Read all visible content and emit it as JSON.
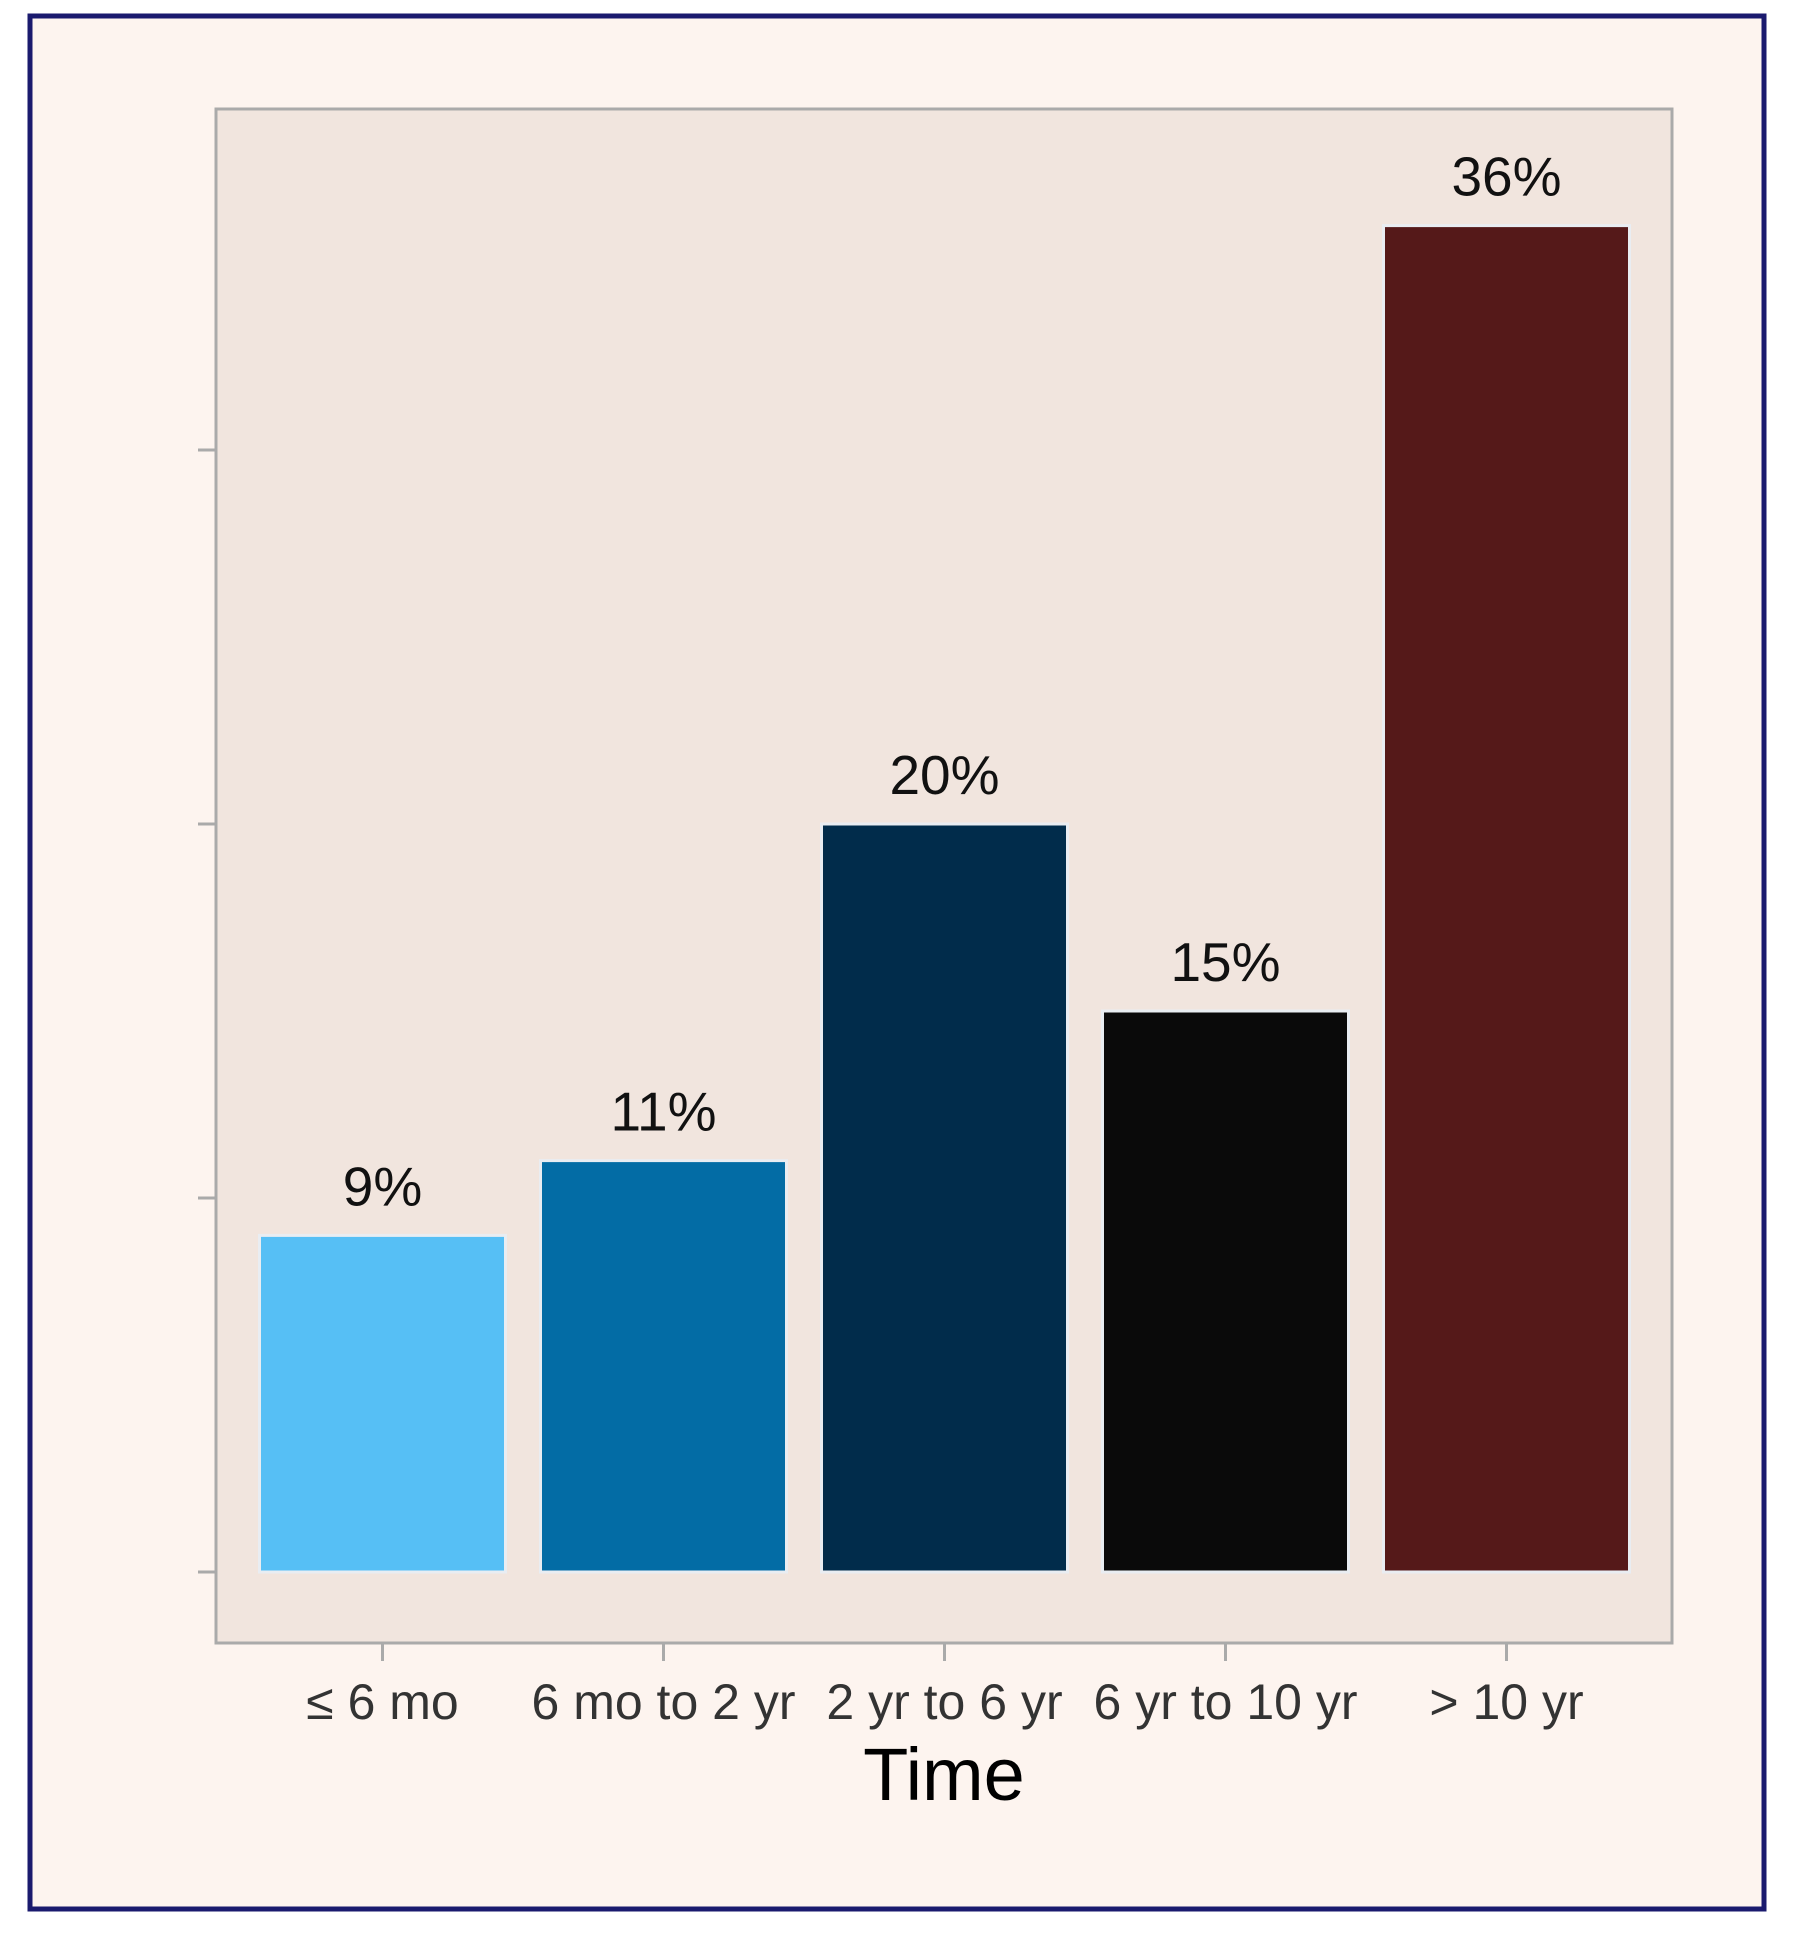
{
  "chart_data": {
    "type": "bar",
    "title": "",
    "xlabel": "Time",
    "ylabel": "",
    "categories": [
      "≤ 6 mo",
      "6 mo to 2 yr",
      "2 yr to 6 yr",
      "6 yr to 10 yr",
      "> 10 yr"
    ],
    "values": [
      9,
      11,
      20,
      15,
      36
    ],
    "data_labels": [
      "9%",
      "11%",
      "20%",
      "15%",
      "36%"
    ],
    "ylim": [
      0,
      39.2
    ],
    "yticks": [
      0,
      10,
      20,
      30
    ],
    "ytick_labels_shown": false,
    "grid": false,
    "legend": "none",
    "colors": {
      "bars": [
        "#56bff5",
        "#036ca5",
        "#012c4b",
        "#0a0a0a",
        "#551919"
      ],
      "page_background": "#fdf4ef",
      "plot_background": "#f1e5de",
      "frame": "#1a1a6e",
      "plot_border": "#aaaaaa"
    }
  }
}
